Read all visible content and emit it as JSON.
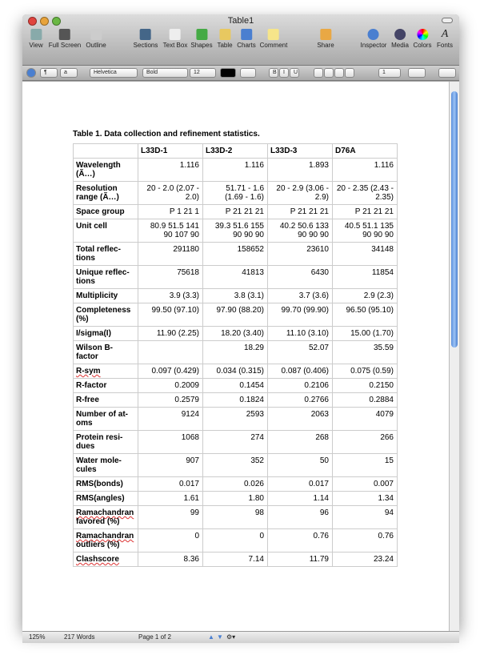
{
  "window": {
    "title": "Table1"
  },
  "toolbar": [
    {
      "label": "View",
      "icon": "view-icon"
    },
    {
      "label": "Full Screen",
      "icon": "full-screen-icon"
    },
    {
      "label": "Outline",
      "icon": "outline-icon"
    },
    {
      "label": "Sections",
      "icon": "sections-icon"
    },
    {
      "label": "Text Box",
      "icon": "text-box-icon"
    },
    {
      "label": "Shapes",
      "icon": "shapes-icon"
    },
    {
      "label": "Table",
      "icon": "table-icon"
    },
    {
      "label": "Charts",
      "icon": "charts-icon"
    },
    {
      "label": "Comment",
      "icon": "comment-icon"
    },
    {
      "label": "Share",
      "icon": "share-icon"
    },
    {
      "label": "Inspector",
      "icon": "inspector-icon"
    },
    {
      "label": "Media",
      "icon": "media-icon"
    },
    {
      "label": "Colors",
      "icon": "colors-icon"
    },
    {
      "label": "Fonts",
      "icon": "fonts-icon"
    }
  ],
  "format_bar": {
    "paragraph_style": "¶",
    "char_style": "a",
    "font": "Helvetica",
    "font_style": "Bold",
    "size": "12",
    "text_color": "#000000",
    "bold": "B",
    "italic": "I",
    "underline": "U",
    "line_spacing": "1"
  },
  "document": {
    "caption": "Table 1.  Data collection and refinement statistics.",
    "headers": [
      "",
      "L33D-1",
      "L33D-2",
      "L33D-3",
      "D76A"
    ],
    "rows": [
      [
        "Wavelength (Ã…)",
        "1.116",
        "1.116",
        "1.893",
        "1.116"
      ],
      [
        "Resolution range (Ã…)",
        "20  - 2.0 (2.07 - 2.0)",
        "51.71  - 1.6 (1.69 - 1.6)",
        "20  - 2.9 (3.06 - 2.9)",
        "20  - 2.35 (2.43 - 2.35)"
      ],
      [
        "Space group",
        "P 1 21 1",
        "P 21 21 21",
        "P 21 21 21",
        "P 21 21 21"
      ],
      [
        "Unit cell",
        "80.9 51.5 141 90 107 90",
        "39.3 51.6 155 90 90 90",
        "40.2 50.6 133 90 90 90",
        "40.5 51.1 135 90 90 90"
      ],
      [
        "Total reflec-tions",
        "291180",
        "158652",
        "23610",
        "34148"
      ],
      [
        "Unique reflec-tions",
        "75618",
        "41813",
        "6430",
        "11854"
      ],
      [
        "Multiplicity",
        "3.9 (3.3)",
        "3.8 (3.1)",
        "3.7 (3.6)",
        "2.9 (2.3)"
      ],
      [
        "Completeness (%)",
        "99.50 (97.10)",
        "97.90 (88.20)",
        "99.70 (99.90)",
        "96.50 (95.10)"
      ],
      [
        "I/sigma(I)",
        "11.90 (2.25)",
        "18.20 (3.40)",
        "11.10 (3.10)",
        "15.00 (1.70)"
      ],
      [
        "Wilson B-factor",
        "",
        "18.29",
        "52.07",
        "35.59"
      ],
      [
        "R-sym",
        "0.097 (0.429)",
        "0.034 (0.315)",
        "0.087 (0.406)",
        "0.075 (0.59)"
      ],
      [
        "R-factor",
        "0.2009",
        "0.1454",
        "0.2106",
        "0.2150"
      ],
      [
        "R-free",
        "0.2579",
        "0.1824",
        "0.2766",
        "0.2884"
      ],
      [
        "Number of at-oms",
        "9124",
        "2593",
        "2063",
        "4079"
      ],
      [
        "Protein resi-dues",
        "1068",
        "274",
        "268",
        "266"
      ],
      [
        "Water mole-cules",
        "907",
        "352",
        "50",
        "15"
      ],
      [
        "RMS(bonds)",
        "0.017",
        "0.026",
        "0.017",
        "0.007"
      ],
      [
        "RMS(angles)",
        "1.61",
        "1.80",
        "1.14",
        "1.34"
      ],
      [
        "Ramachandran favored (%)",
        "99",
        "98",
        "96",
        "94"
      ],
      [
        "Ramachandran outliers (%)",
        "0",
        "0",
        "0.76",
        "0.76"
      ],
      [
        "Clashscore",
        "8.36",
        "7.14",
        "11.79",
        "23.24"
      ]
    ]
  },
  "status": {
    "zoom": "125%",
    "words": "217 Words",
    "page": "Page 1 of 2"
  }
}
